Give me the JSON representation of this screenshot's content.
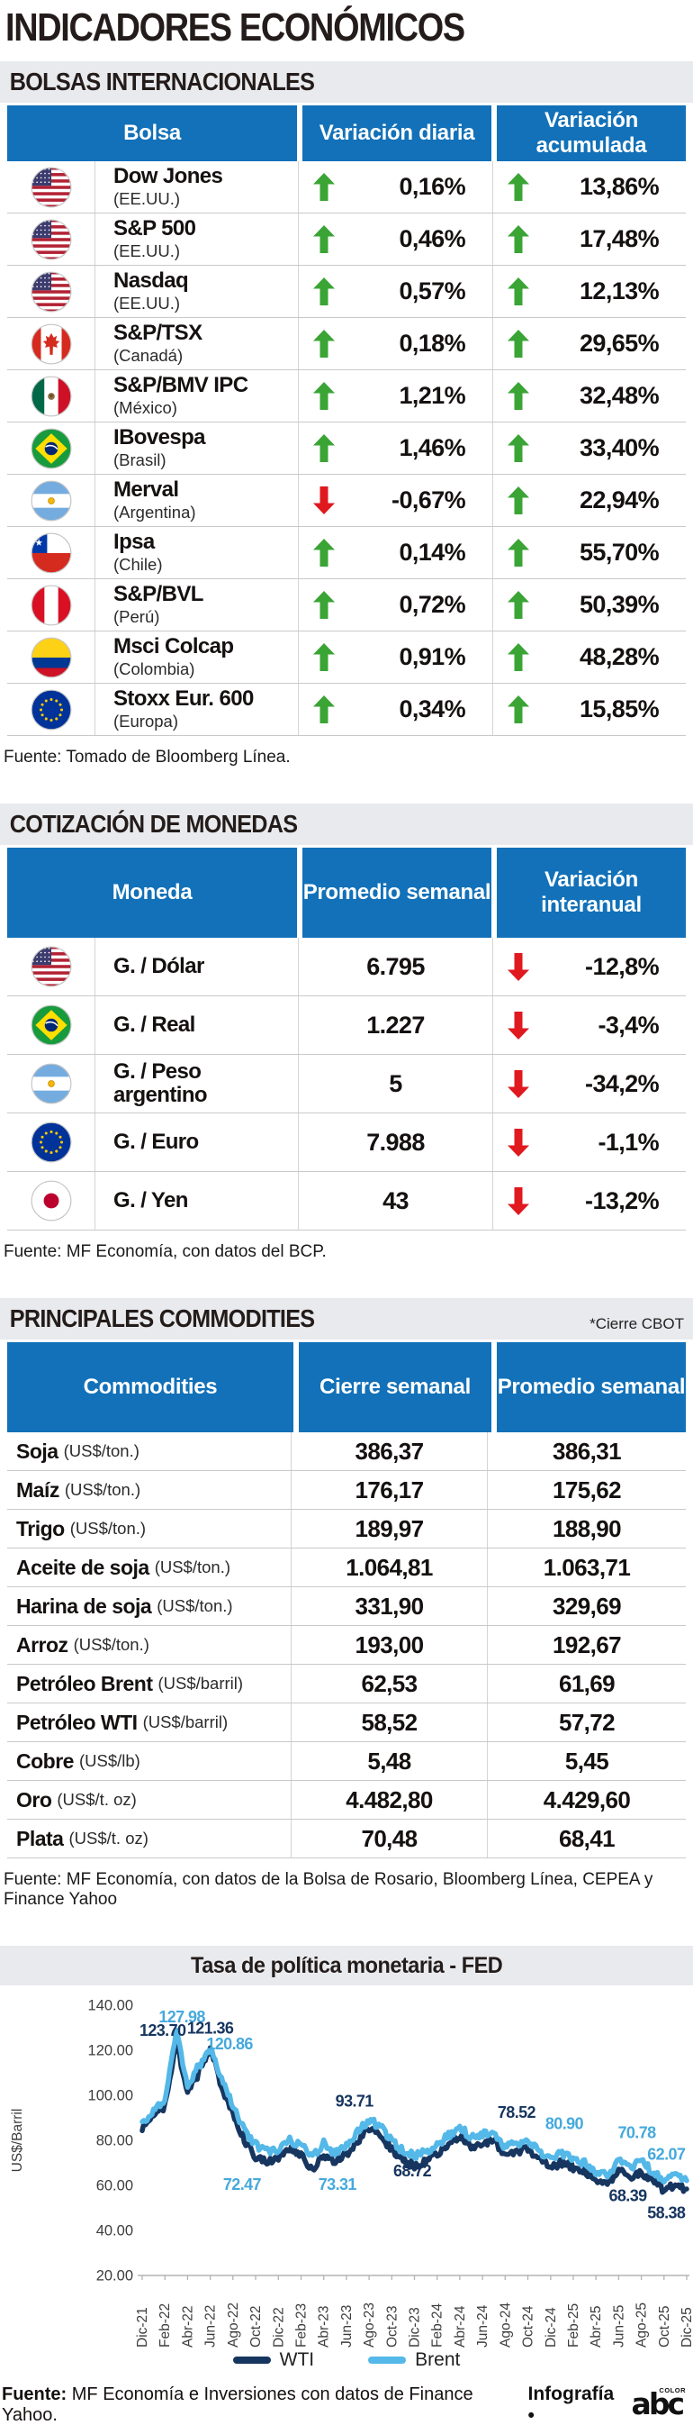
{
  "title": "INDICADORES ECONÓMICOS",
  "colors": {
    "header_blue": "#1271b8",
    "band_gray": "#e9eaed",
    "up_green": "#3aa435",
    "down_red": "#e0191f",
    "wti_navy": "#16355f",
    "brent_blue": "#54b8e8",
    "brent_label": "#45a9dd"
  },
  "sections": {
    "bolsas": {
      "heading": "BOLSAS INTERNACIONALES",
      "columns": [
        "Bolsa",
        "Variación diaria",
        "Variación acumulada"
      ],
      "rows": [
        {
          "flag": "us",
          "name": "Dow Jones",
          "country": "(EE.UU.)",
          "daily": {
            "dir": "up",
            "value": "0,16%"
          },
          "accum": {
            "dir": "up",
            "value": "13,86%"
          }
        },
        {
          "flag": "us",
          "name": "S&P 500",
          "country": "(EE.UU.)",
          "daily": {
            "dir": "up",
            "value": "0,46%"
          },
          "accum": {
            "dir": "up",
            "value": "17,48%"
          }
        },
        {
          "flag": "us",
          "name": "Nasdaq",
          "country": "(EE.UU.)",
          "daily": {
            "dir": "up",
            "value": "0,57%"
          },
          "accum": {
            "dir": "up",
            "value": "12,13%"
          }
        },
        {
          "flag": "ca",
          "name": "S&P/TSX",
          "country": "(Canadá)",
          "daily": {
            "dir": "up",
            "value": "0,18%"
          },
          "accum": {
            "dir": "up",
            "value": "29,65%"
          }
        },
        {
          "flag": "mx",
          "name": "S&P/BMV IPC",
          "country": "(México)",
          "daily": {
            "dir": "up",
            "value": "1,21%"
          },
          "accum": {
            "dir": "up",
            "value": "32,48%"
          }
        },
        {
          "flag": "br",
          "name": "IBovespa",
          "country": "(Brasil)",
          "daily": {
            "dir": "up",
            "value": "1,46%"
          },
          "accum": {
            "dir": "up",
            "value": "33,40%"
          }
        },
        {
          "flag": "ar",
          "name": "Merval",
          "country": "(Argentina)",
          "daily": {
            "dir": "down",
            "value": "-0,67%"
          },
          "accum": {
            "dir": "up",
            "value": "22,94%"
          }
        },
        {
          "flag": "cl",
          "name": "Ipsa",
          "country": "(Chile)",
          "daily": {
            "dir": "up",
            "value": "0,14%"
          },
          "accum": {
            "dir": "up",
            "value": "55,70%"
          }
        },
        {
          "flag": "pe",
          "name": "S&P/BVL",
          "country": "(Perú)",
          "daily": {
            "dir": "up",
            "value": "0,72%"
          },
          "accum": {
            "dir": "up",
            "value": "50,39%"
          }
        },
        {
          "flag": "co",
          "name": "Msci Colcap",
          "country": "(Colombia)",
          "daily": {
            "dir": "up",
            "value": "0,91%"
          },
          "accum": {
            "dir": "up",
            "value": "48,28%"
          }
        },
        {
          "flag": "eu",
          "name": "Stoxx Eur. 600",
          "country": "(Europa)",
          "daily": {
            "dir": "up",
            "value": "0,34%"
          },
          "accum": {
            "dir": "up",
            "value": "15,85%"
          }
        }
      ],
      "source": "Fuente: Tomado de Bloomberg Línea."
    },
    "monedas": {
      "heading": "COTIZACIÓN DE MONEDAS",
      "columns": [
        "Moneda",
        "Promedio semanal",
        "Variación interanual"
      ],
      "rows": [
        {
          "flag": "us",
          "name": "G. / Dólar",
          "avg": "6.795",
          "var": {
            "dir": "down",
            "value": "-12,8%"
          }
        },
        {
          "flag": "br",
          "name": "G. / Real",
          "avg": "1.227",
          "var": {
            "dir": "down",
            "value": "-3,4%"
          }
        },
        {
          "flag": "ar",
          "name": "G. / Peso argentino",
          "avg": "5",
          "var": {
            "dir": "down",
            "value": "-34,2%"
          }
        },
        {
          "flag": "eu",
          "name": "G. / Euro",
          "avg": "7.988",
          "var": {
            "dir": "down",
            "value": "-1,1%"
          }
        },
        {
          "flag": "jp",
          "name": "G. / Yen",
          "avg": "43",
          "var": {
            "dir": "down",
            "value": "-13,2%"
          }
        }
      ],
      "source": "Fuente: MF Economía, con datos del BCP."
    },
    "commodities": {
      "heading": "PRINCIPALES COMMODITIES",
      "note": "*Cierre CBOT",
      "columns": [
        "Commodities",
        "Cierre semanal",
        "Promedio semanal"
      ],
      "rows": [
        {
          "name": "Soja",
          "unit": "(US$/ton.)",
          "close": "386,37",
          "avg": "386,31"
        },
        {
          "name": "Maíz",
          "unit": "(US$/ton.)",
          "close": "176,17",
          "avg": "175,62"
        },
        {
          "name": "Trigo",
          "unit": "(US$/ton.)",
          "close": "189,97",
          "avg": "188,90"
        },
        {
          "name": "Aceite de soja",
          "unit": "(US$/ton.)",
          "close": "1.064,81",
          "avg": "1.063,71"
        },
        {
          "name": "Harina de soja",
          "unit": "(US$/ton.)",
          "close": "331,90",
          "avg": "329,69"
        },
        {
          "name": "Arroz",
          "unit": "(US$/ton.)",
          "close": "193,00",
          "avg": "192,67"
        },
        {
          "name": "Petróleo Brent",
          "unit": "(US$/barril)",
          "close": "62,53",
          "avg": "61,69"
        },
        {
          "name": "Petróleo WTI",
          "unit": "(US$/barril)",
          "close": "58,52",
          "avg": "57,72"
        },
        {
          "name": "Cobre",
          "unit": "(US$/lb)",
          "close": "5,48",
          "avg": "5,45"
        },
        {
          "name": "Oro",
          "unit": "(US$/t. oz)",
          "close": "4.482,80",
          "avg": "4.429,60"
        },
        {
          "name": "Plata",
          "unit": "(US$/t. oz)",
          "close": "70,48",
          "avg": "68,41"
        }
      ],
      "source": "Fuente: MF Economía, con datos de la Bolsa de Rosario, Bloomberg Línea, CEPEA y Finance Yahoo"
    }
  },
  "chart_data": {
    "type": "line",
    "title": "Tasa de política monetaria - FED",
    "ylabel": "US$/Barril",
    "ylim": [
      20,
      140
    ],
    "yticks": [
      "140.00",
      "120.00",
      "100.00",
      "80.00",
      "60.00",
      "40.00",
      "20.00"
    ],
    "grid": false,
    "legend_position": "bottom",
    "x_tick_labels": [
      "Dic-21",
      "Feb-22",
      "Abr-22",
      "Jun-22",
      "Ago-22",
      "Oct-22",
      "Dic-22",
      "Feb-23",
      "Abr-23",
      "Jun-23",
      "Ago-23",
      "Oct-23",
      "Dic-23",
      "Feb-24",
      "Abr-24",
      "Jun-24",
      "Ago-24",
      "Oct-24",
      "Dic-24",
      "Feb-25",
      "Abr-25",
      "Jun-25",
      "Ago-25",
      "Oct-25",
      "Dic-25"
    ],
    "series": [
      {
        "name": "WTI",
        "color": "#16355f",
        "label_color": "#16355f",
        "values": [
          86,
          90,
          95,
          123.7,
          101,
          110,
          121.4,
          104,
          92,
          80,
          73,
          71,
          72,
          76,
          74,
          67,
          74,
          70,
          74,
          80,
          85,
          82,
          76,
          71,
          68.7,
          71,
          74,
          78,
          82,
          77,
          79,
          80,
          73,
          75,
          76,
          71,
          68,
          70,
          68,
          66,
          62,
          60,
          67,
          64,
          66,
          62,
          58,
          60,
          58.4
        ]
      },
      {
        "name": "Brent",
        "color": "#54b8e8",
        "label_color": "#45a9dd",
        "values": [
          87,
          93,
          98,
          128,
          105,
          113,
          120.9,
          108,
          96,
          84,
          78,
          75,
          76,
          80,
          78,
          72.5,
          79,
          74,
          78,
          84,
          89,
          86,
          80,
          75,
          73.3,
          75,
          78,
          82,
          86,
          81,
          83,
          84,
          77,
          79,
          80,
          75,
          72,
          74,
          72,
          70,
          66,
          64,
          71,
          68,
          70.8,
          66,
          62,
          64,
          62.1
        ]
      }
    ],
    "annotations": [
      {
        "label": "127.98",
        "series": "Brent",
        "x": 3.5,
        "y": 132.5
      },
      {
        "label": "123.70",
        "series": "WTI",
        "x": 1.8,
        "y": 126.5
      },
      {
        "label": "121.36",
        "series": "WTI",
        "x": 6.0,
        "y": 127.5
      },
      {
        "label": "120.86",
        "series": "Brent",
        "x": 7.7,
        "y": 120.5
      },
      {
        "label": "72.47",
        "series": "Brent",
        "x": 8.8,
        "y": 58
      },
      {
        "label": "93.71",
        "series": "WTI",
        "x": 18.7,
        "y": 95
      },
      {
        "label": "73.31",
        "series": "Brent",
        "x": 17.2,
        "y": 58
      },
      {
        "label": "68.72",
        "series": "WTI",
        "x": 23.8,
        "y": 64
      },
      {
        "label": "78.52",
        "series": "WTI",
        "x": 33.0,
        "y": 90
      },
      {
        "label": "80.90",
        "series": "Brent",
        "x": 37.2,
        "y": 85
      },
      {
        "label": "70.78",
        "series": "Brent",
        "x": 43.6,
        "y": 81
      },
      {
        "label": "62.07",
        "series": "Brent",
        "x": 46.2,
        "y": 71.5
      },
      {
        "label": "68.39",
        "series": "WTI",
        "x": 42.8,
        "y": 53
      },
      {
        "label": "58.38",
        "series": "WTI",
        "x": 46.2,
        "y": 45.5
      }
    ],
    "source_label": "Fuente:",
    "source": " MF Economía e Inversiones con datos de Finance Yahoo."
  },
  "footer": {
    "credit": "Infografía •",
    "logo": "abc",
    "logo_small": "COLOR"
  }
}
